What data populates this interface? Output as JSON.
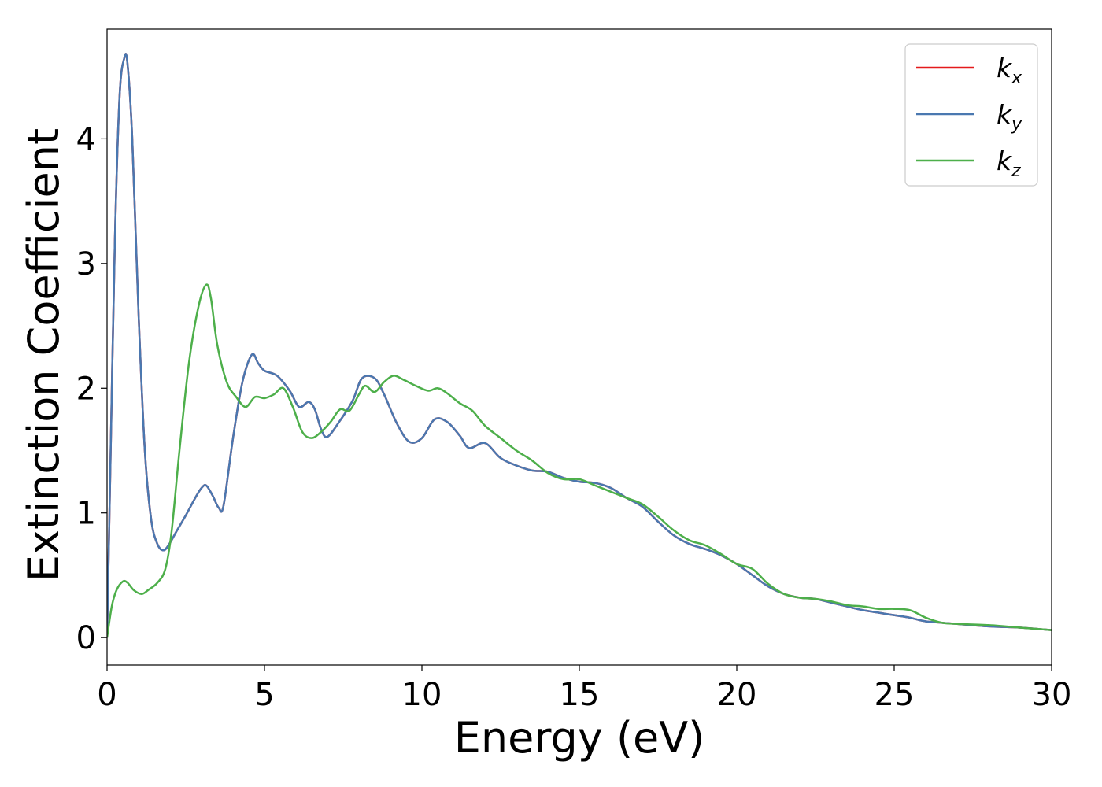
{
  "chart_data": {
    "type": "line",
    "xlabel": "Energy (eV)",
    "ylabel": "Extinction Coefficient",
    "xlim": [
      0,
      30
    ],
    "ylim": [
      -0.22,
      4.88
    ],
    "xticks": [
      0,
      5,
      10,
      15,
      20,
      25,
      30
    ],
    "yticks": [
      0,
      1,
      2,
      3,
      4
    ],
    "grid": false,
    "legend": "top-right",
    "series": [
      {
        "name": "k_x",
        "label_main": "k",
        "label_sub": "x",
        "color": "#e41a1c",
        "x": [
          0,
          0.1,
          0.25,
          0.4,
          0.55,
          0.65,
          0.8,
          1.0,
          1.2,
          1.4,
          1.6,
          1.8,
          2.0,
          2.2,
          2.5,
          2.8,
          3.0,
          3.15,
          3.35,
          3.55,
          3.7,
          4.0,
          4.3,
          4.6,
          4.8,
          5.0,
          5.4,
          5.8,
          6.1,
          6.4,
          6.6,
          6.8,
          7.0,
          7.4,
          7.8,
          8.1,
          8.5,
          8.8,
          9.2,
          9.6,
          10.0,
          10.4,
          10.8,
          11.2,
          11.5,
          12.0,
          12.5,
          13.0,
          13.5,
          14.0,
          14.5,
          15.0,
          15.5,
          16.0,
          16.5,
          17.0,
          17.5,
          18.0,
          18.5,
          19.0,
          19.5,
          20.0,
          20.5,
          21.0,
          21.5,
          22.0,
          22.5,
          23.0,
          23.5,
          24.0,
          25.0,
          25.5,
          26.0,
          27.0,
          28.0,
          29.0,
          30.0
        ],
        "y": [
          0.0,
          1.3,
          3.2,
          4.35,
          4.65,
          4.6,
          4.0,
          2.6,
          1.5,
          0.95,
          0.75,
          0.7,
          0.76,
          0.85,
          0.98,
          1.12,
          1.2,
          1.22,
          1.14,
          1.04,
          1.06,
          1.6,
          2.05,
          2.27,
          2.2,
          2.14,
          2.1,
          1.98,
          1.85,
          1.89,
          1.83,
          1.67,
          1.61,
          1.74,
          1.9,
          2.08,
          2.08,
          1.95,
          1.72,
          1.57,
          1.6,
          1.75,
          1.73,
          1.62,
          1.52,
          1.56,
          1.44,
          1.38,
          1.34,
          1.33,
          1.28,
          1.25,
          1.24,
          1.2,
          1.12,
          1.05,
          0.93,
          0.82,
          0.75,
          0.71,
          0.66,
          0.59,
          0.5,
          0.41,
          0.35,
          0.32,
          0.31,
          0.28,
          0.25,
          0.22,
          0.18,
          0.16,
          0.13,
          0.11,
          0.09,
          0.08,
          0.06
        ]
      },
      {
        "name": "k_y",
        "label_main": "k",
        "label_sub": "y",
        "color": "#4a78b0",
        "x": [
          0,
          0.1,
          0.25,
          0.4,
          0.55,
          0.65,
          0.8,
          1.0,
          1.2,
          1.4,
          1.6,
          1.8,
          2.0,
          2.2,
          2.5,
          2.8,
          3.0,
          3.15,
          3.35,
          3.55,
          3.7,
          4.0,
          4.3,
          4.6,
          4.8,
          5.0,
          5.4,
          5.8,
          6.1,
          6.4,
          6.6,
          6.8,
          7.0,
          7.4,
          7.8,
          8.1,
          8.5,
          8.8,
          9.2,
          9.6,
          10.0,
          10.4,
          10.8,
          11.2,
          11.5,
          12.0,
          12.5,
          13.0,
          13.5,
          14.0,
          14.5,
          15.0,
          15.5,
          16.0,
          16.5,
          17.0,
          17.5,
          18.0,
          18.5,
          19.0,
          19.5,
          20.0,
          20.5,
          21.0,
          21.5,
          22.0,
          22.5,
          23.0,
          23.5,
          24.0,
          25.0,
          25.5,
          26.0,
          27.0,
          28.0,
          29.0,
          30.0
        ],
        "y": [
          0.0,
          1.3,
          3.2,
          4.35,
          4.65,
          4.6,
          4.0,
          2.6,
          1.5,
          0.95,
          0.75,
          0.7,
          0.76,
          0.85,
          0.98,
          1.12,
          1.2,
          1.22,
          1.14,
          1.04,
          1.06,
          1.6,
          2.05,
          2.27,
          2.2,
          2.14,
          2.1,
          1.98,
          1.85,
          1.89,
          1.83,
          1.67,
          1.61,
          1.74,
          1.9,
          2.08,
          2.08,
          1.95,
          1.72,
          1.57,
          1.6,
          1.75,
          1.73,
          1.62,
          1.52,
          1.56,
          1.44,
          1.38,
          1.34,
          1.33,
          1.28,
          1.25,
          1.24,
          1.2,
          1.12,
          1.05,
          0.93,
          0.82,
          0.75,
          0.71,
          0.66,
          0.59,
          0.5,
          0.41,
          0.35,
          0.32,
          0.31,
          0.28,
          0.25,
          0.22,
          0.18,
          0.16,
          0.13,
          0.11,
          0.09,
          0.08,
          0.06
        ]
      },
      {
        "name": "k_z",
        "label_main": "k",
        "label_sub": "z",
        "color": "#4daf4a",
        "x": [
          0,
          0.15,
          0.3,
          0.5,
          0.65,
          0.85,
          1.1,
          1.3,
          1.6,
          1.85,
          2.05,
          2.3,
          2.6,
          2.9,
          3.15,
          3.3,
          3.5,
          3.8,
          4.1,
          4.4,
          4.7,
          5.0,
          5.3,
          5.6,
          5.9,
          6.2,
          6.5,
          6.8,
          7.1,
          7.4,
          7.7,
          8.0,
          8.2,
          8.5,
          8.8,
          9.1,
          9.4,
          9.8,
          10.2,
          10.5,
          10.8,
          11.2,
          11.6,
          12.0,
          12.5,
          13.0,
          13.5,
          14.0,
          14.5,
          15.0,
          15.5,
          16.0,
          16.5,
          17.0,
          17.5,
          18.0,
          18.5,
          19.0,
          19.5,
          20.0,
          20.5,
          21.0,
          21.5,
          22.0,
          22.5,
          23.0,
          23.5,
          24.0,
          24.5,
          25.0,
          25.5,
          26.0,
          26.5,
          27.0,
          28.0,
          29.0,
          30.0
        ],
        "y": [
          0.0,
          0.25,
          0.38,
          0.45,
          0.44,
          0.38,
          0.35,
          0.38,
          0.44,
          0.55,
          0.85,
          1.5,
          2.2,
          2.65,
          2.83,
          2.72,
          2.35,
          2.05,
          1.93,
          1.85,
          1.93,
          1.92,
          1.95,
          2.0,
          1.85,
          1.65,
          1.6,
          1.65,
          1.73,
          1.83,
          1.82,
          1.95,
          2.02,
          1.97,
          2.05,
          2.1,
          2.07,
          2.02,
          1.98,
          2.0,
          1.96,
          1.88,
          1.82,
          1.7,
          1.6,
          1.5,
          1.42,
          1.32,
          1.27,
          1.27,
          1.22,
          1.17,
          1.12,
          1.07,
          0.97,
          0.86,
          0.78,
          0.74,
          0.67,
          0.59,
          0.55,
          0.43,
          0.35,
          0.32,
          0.31,
          0.29,
          0.26,
          0.25,
          0.23,
          0.23,
          0.22,
          0.16,
          0.12,
          0.11,
          0.1,
          0.08,
          0.06
        ]
      }
    ]
  }
}
